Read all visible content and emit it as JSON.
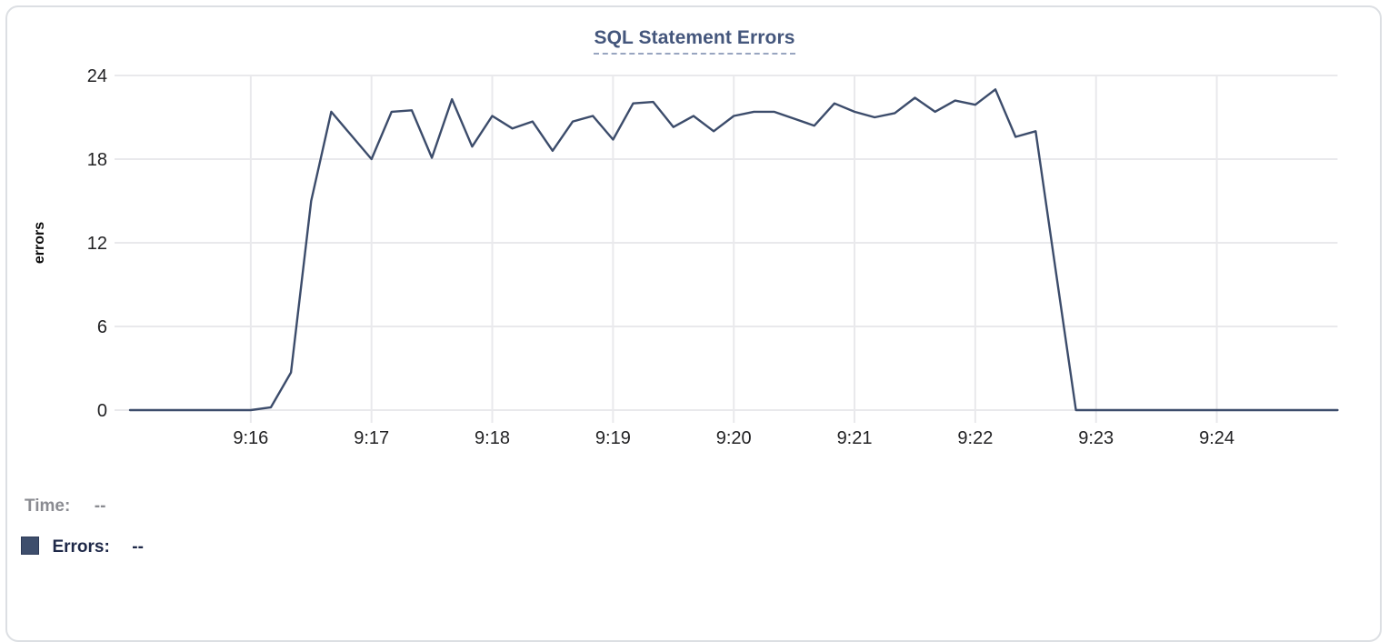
{
  "card": {
    "title": "SQL Statement Errors"
  },
  "legend": {
    "time_label": "Time:",
    "time_value": "--",
    "errors_label": "Errors:",
    "errors_value": "--",
    "swatch_color": "#3e4e6c"
  },
  "chart_data": {
    "type": "line",
    "title": "SQL Statement Errors",
    "xlabel": "",
    "ylabel": "errors",
    "ylim": [
      0,
      24
    ],
    "y_ticks": [
      0,
      6,
      12,
      18,
      24
    ],
    "x_ticks": [
      "9:16",
      "9:17",
      "9:18",
      "9:19",
      "9:20",
      "9:21",
      "9:22",
      "9:23",
      "9:24"
    ],
    "x_range": [
      "9:15:00",
      "9:25:00"
    ],
    "grid": true,
    "legend_position": "bottom-left",
    "colors": {
      "grid": "#e9e9ec",
      "tick_text": "#222224",
      "axis_title_text": "#0a0a0a",
      "title_text": "#44567c",
      "title_underline": "#98a5c0"
    },
    "series": [
      {
        "name": "Errors",
        "color": "#3c4c6b",
        "x": [
          "9:15:00",
          "9:15:10",
          "9:15:20",
          "9:15:30",
          "9:15:40",
          "9:15:50",
          "9:16:00",
          "9:16:10",
          "9:16:20",
          "9:16:30",
          "9:16:40",
          "9:16:50",
          "9:17:00",
          "9:17:10",
          "9:17:20",
          "9:17:30",
          "9:17:40",
          "9:17:50",
          "9:18:00",
          "9:18:10",
          "9:18:20",
          "9:18:30",
          "9:18:40",
          "9:18:50",
          "9:19:00",
          "9:19:10",
          "9:19:20",
          "9:19:30",
          "9:19:40",
          "9:19:50",
          "9:20:00",
          "9:20:10",
          "9:20:20",
          "9:20:30",
          "9:20:40",
          "9:20:50",
          "9:21:00",
          "9:21:10",
          "9:21:20",
          "9:21:30",
          "9:21:40",
          "9:21:50",
          "9:22:00",
          "9:22:10",
          "9:22:20",
          "9:22:30",
          "9:22:40",
          "9:22:50",
          "9:23:00",
          "9:23:10",
          "9:23:20",
          "9:23:30",
          "9:23:40",
          "9:23:50",
          "9:24:00",
          "9:24:10",
          "9:24:20",
          "9:24:30",
          "9:24:40",
          "9:24:50",
          "9:25:00"
        ],
        "values": [
          0,
          0,
          0,
          0,
          0,
          0,
          0,
          0.2,
          2.7,
          15,
          21.4,
          19.7,
          18,
          21.4,
          21.5,
          18.1,
          22.3,
          18.9,
          21.1,
          20.2,
          20.7,
          18.6,
          20.7,
          21.1,
          19.4,
          22,
          22.1,
          20.3,
          21.1,
          20,
          21.1,
          21.4,
          21.4,
          20.9,
          20.4,
          22,
          21.4,
          21,
          21.3,
          22.4,
          21.4,
          22.2,
          21.9,
          23,
          19.6,
          20,
          10,
          0,
          0,
          0,
          0,
          0,
          0,
          0,
          0,
          0,
          0,
          0,
          0,
          0,
          0
        ]
      }
    ]
  }
}
